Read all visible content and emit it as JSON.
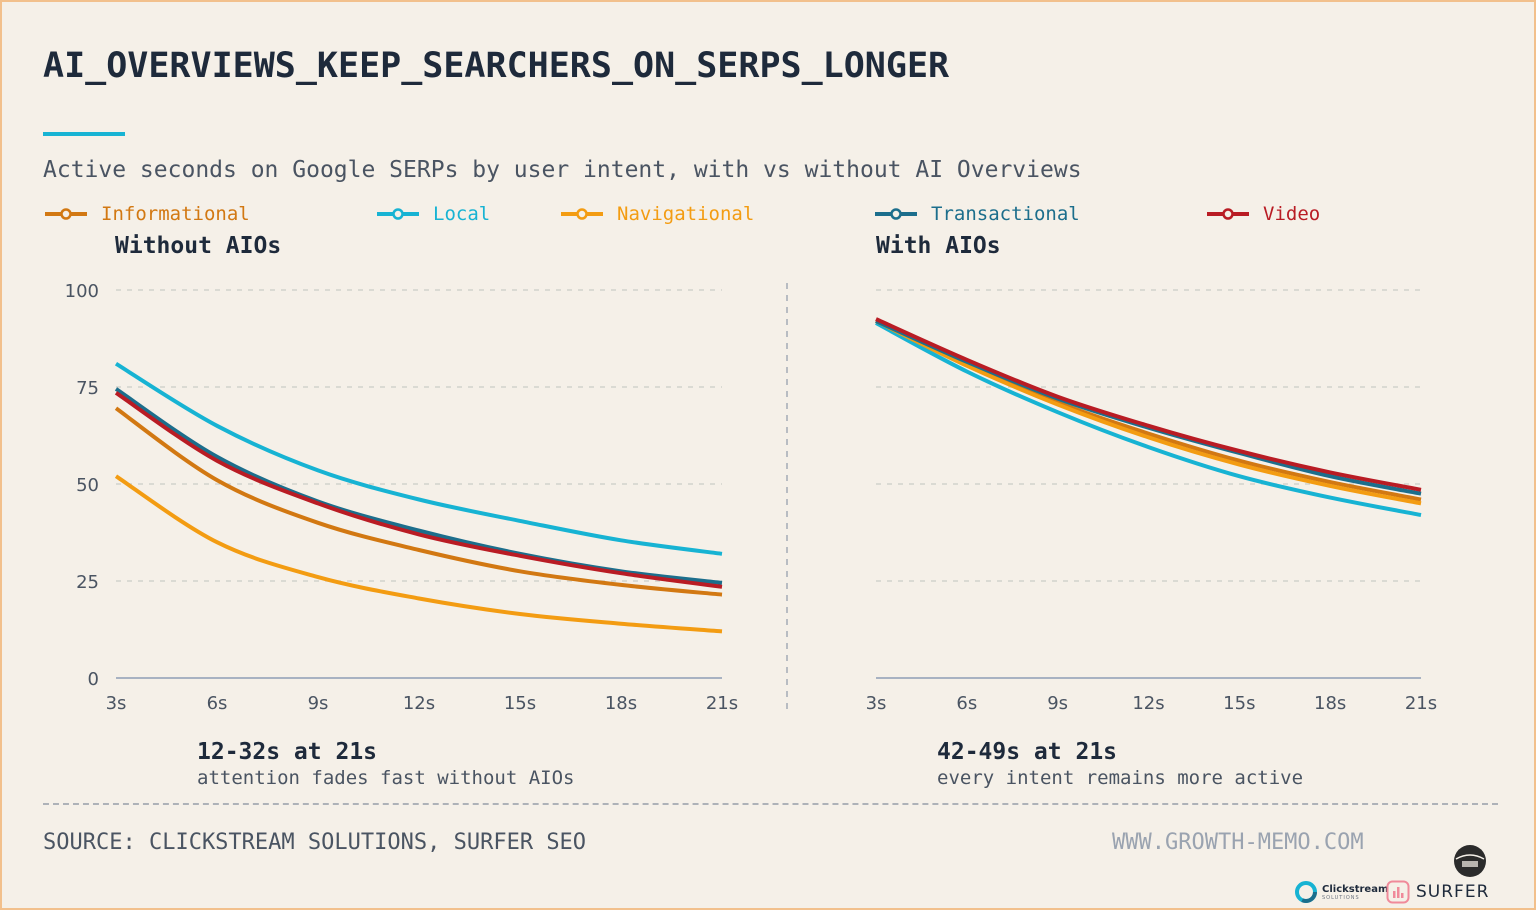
{
  "header": {
    "title": "AI_OVERVIEWS_KEEP_SEARCHERS_ON_SERPS_LONGER",
    "subtitle": "Active seconds on Google SERPs by user intent, with vs without AI Overviews"
  },
  "legend": [
    {
      "name": "Informational",
      "color": "#d27812"
    },
    {
      "name": "Local",
      "color": "#17b3d3"
    },
    {
      "name": "Navigational",
      "color": "#f39c12"
    },
    {
      "name": "Transactional",
      "color": "#1c6e8c"
    },
    {
      "name": "Video",
      "color": "#b91c24"
    }
  ],
  "panels": {
    "left_title": "Without AIOs",
    "right_title": "With AIOs"
  },
  "notes": {
    "left_head": "12-32s at 21s",
    "left_sub": "attention fades fast without AIOs",
    "right_head": "42-49s at 21s",
    "right_sub": "every intent remains more active"
  },
  "footer": {
    "source": "SOURCE: CLICKSTREAM SOLUTIONS, SURFER SEO",
    "site": "WWW.GROWTH-MEMO.COM",
    "brand_clickstream": "Clickstream",
    "brand_clickstream_sub": "SOLUTIONS",
    "brand_surfer": "SURFER"
  },
  "chart_data": [
    {
      "type": "line",
      "title": "Without AIOs",
      "xlabel": "",
      "ylabel": "",
      "x": [
        3,
        6,
        9,
        12,
        15,
        18,
        21
      ],
      "x_tick_labels": [
        "3s",
        "6s",
        "9s",
        "12s",
        "15s",
        "18s",
        "21s"
      ],
      "y_ticks": [
        0,
        25,
        50,
        75,
        100
      ],
      "xlim": [
        3,
        21
      ],
      "ylim": [
        0,
        100
      ],
      "grid": true,
      "series": [
        {
          "name": "Informational",
          "color": "#d27812",
          "values": [
            69.5,
            51,
            40,
            33,
            27.5,
            24,
            21.5
          ]
        },
        {
          "name": "Local",
          "color": "#17b3d3",
          "values": [
            81,
            65,
            53.5,
            46,
            40.5,
            35.5,
            32
          ]
        },
        {
          "name": "Navigational",
          "color": "#f39c12",
          "values": [
            52,
            35,
            26,
            20.5,
            16.5,
            14,
            12
          ]
        },
        {
          "name": "Transactional",
          "color": "#1c6e8c",
          "values": [
            74.5,
            57,
            45.5,
            38,
            32,
            27.5,
            24.5
          ]
        },
        {
          "name": "Video",
          "color": "#b91c24",
          "values": [
            73.5,
            56,
            45,
            37,
            31.5,
            27,
            23.5
          ]
        }
      ]
    },
    {
      "type": "line",
      "title": "With AIOs",
      "xlabel": "",
      "ylabel": "",
      "x": [
        3,
        6,
        9,
        12,
        15,
        18,
        21
      ],
      "x_tick_labels": [
        "3s",
        "6s",
        "9s",
        "12s",
        "15s",
        "18s",
        "21s"
      ],
      "xlim": [
        3,
        21
      ],
      "ylim": [
        0,
        100
      ],
      "grid": true,
      "series": [
        {
          "name": "Informational",
          "color": "#d27812",
          "values": [
            92,
            81,
            71,
            63,
            56,
            50.5,
            46
          ]
        },
        {
          "name": "Local",
          "color": "#17b3d3",
          "values": [
            91.5,
            79,
            68.5,
            59.5,
            52,
            46.5,
            42
          ]
        },
        {
          "name": "Navigational",
          "color": "#f39c12",
          "values": [
            92,
            80.5,
            70.5,
            62,
            55,
            49.5,
            45
          ]
        },
        {
          "name": "Transactional",
          "color": "#1c6e8c",
          "values": [
            92,
            81.5,
            72,
            64.5,
            58,
            52,
            47.5
          ]
        },
        {
          "name": "Video",
          "color": "#b91c24",
          "values": [
            92.5,
            82,
            72.5,
            65,
            58.5,
            53,
            48.5
          ]
        }
      ]
    }
  ]
}
